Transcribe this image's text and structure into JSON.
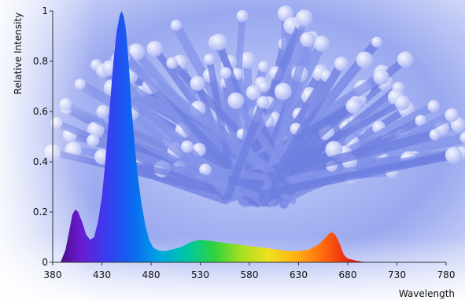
{
  "chart_data": {
    "type": "area",
    "title": "",
    "xlabel": "Wavelength",
    "ylabel": "Relative Intensity",
    "xlim": [
      380,
      780
    ],
    "ylim": [
      0,
      1
    ],
    "x_ticks": [
      "380",
      "430",
      "480",
      "530",
      "580",
      "630",
      "680",
      "730",
      "780"
    ],
    "y_ticks": [
      "0",
      "0.2",
      "0.4",
      "0.6",
      "0.8",
      "1"
    ],
    "grid": false,
    "series": [
      {
        "x": [
          380,
          388,
          393,
          397,
          400,
          403,
          406,
          410,
          414,
          418,
          422,
          426,
          430,
          433,
          436,
          439,
          442,
          445,
          448,
          450,
          452,
          454,
          456,
          458,
          460,
          463,
          466,
          470,
          474,
          478,
          482,
          486,
          490,
          495,
          500,
          505,
          510,
          515,
          520,
          525,
          530,
          540,
          550,
          560,
          570,
          580,
          590,
          600,
          610,
          620,
          630,
          640,
          645,
          650,
          655,
          658,
          661,
          664,
          667,
          670,
          673,
          676,
          680,
          685,
          690,
          700,
          710
        ],
        "y": [
          0.0,
          0.0,
          0.05,
          0.13,
          0.19,
          0.21,
          0.2,
          0.16,
          0.11,
          0.09,
          0.1,
          0.16,
          0.26,
          0.38,
          0.52,
          0.67,
          0.81,
          0.92,
          0.98,
          1.0,
          0.98,
          0.94,
          0.86,
          0.75,
          0.62,
          0.48,
          0.36,
          0.24,
          0.15,
          0.09,
          0.06,
          0.05,
          0.045,
          0.045,
          0.05,
          0.055,
          0.06,
          0.07,
          0.08,
          0.085,
          0.09,
          0.085,
          0.08,
          0.075,
          0.07,
          0.065,
          0.06,
          0.055,
          0.05,
          0.045,
          0.045,
          0.05,
          0.06,
          0.07,
          0.09,
          0.1,
          0.115,
          0.12,
          0.11,
          0.09,
          0.06,
          0.03,
          0.015,
          0.01,
          0.005,
          0.0,
          0.0
        ]
      }
    ],
    "spectrum_colors": [
      "#3a0a6a",
      "#6a1bd0",
      "#3a3cf0",
      "#0a6af0",
      "#00a8e0",
      "#00c8a0",
      "#30d23c",
      "#a8e020",
      "#f0e020",
      "#ffb010",
      "#ff6a10",
      "#e82010",
      "#b01010"
    ]
  }
}
